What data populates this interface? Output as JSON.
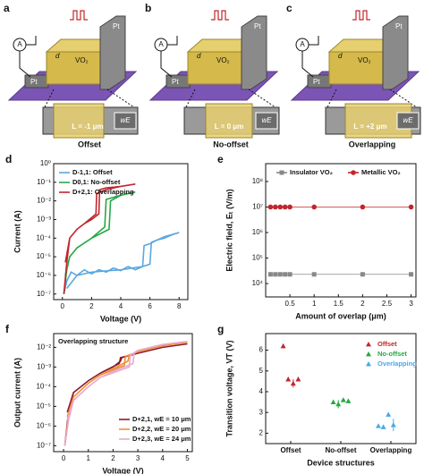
{
  "diagrams": [
    {
      "letter": "a",
      "pt_left": "Pt",
      "pt_right": "Pt",
      "material": "VO₂",
      "gap": "d",
      "meter": "A",
      "length": "L = -1 μm",
      "width": "wE",
      "caption": "Offset"
    },
    {
      "letter": "b",
      "pt_left": "Pt",
      "pt_right": "Pt",
      "material": "VO₂",
      "gap": "d",
      "meter": "A",
      "length": "L = 0 μm",
      "width": "wE",
      "caption": "No-offset"
    },
    {
      "letter": "c",
      "pt_left": "Pt",
      "pt_right": "Pt",
      "material": "VO₂",
      "gap": "d",
      "meter": "A",
      "length": "L = +2 μm",
      "width": "wE",
      "caption": "Overlapping"
    }
  ],
  "chart_data": [
    {
      "letter": "d",
      "type": "line",
      "xlabel": "Voltage (V)",
      "ylabel": "Current (A)",
      "log_y": true,
      "legend": "upper left",
      "xlim": [
        -0.6,
        8.6
      ],
      "xticks": [
        0,
        2,
        4,
        6,
        8
      ],
      "ylim": [
        5e-08,
        1
      ],
      "yticks": [
        {
          "value": 1e-07,
          "label": "10⁻⁷"
        },
        {
          "value": 1e-06,
          "label": "10⁻⁶"
        },
        {
          "value": 1e-05,
          "label": "10⁻⁵"
        },
        {
          "value": 0.0001,
          "label": "10⁻⁴"
        },
        {
          "value": 0.001,
          "label": "10⁻³"
        },
        {
          "value": 0.01,
          "label": "10⁻²"
        },
        {
          "value": 0.1,
          "label": "10⁻¹"
        },
        {
          "value": 1,
          "label": "10⁰"
        }
      ],
      "series": [
        {
          "name": "D-1,1: Offset",
          "color": "#5aa7e0",
          "x": [
            0.1,
            0.3,
            0.6,
            1,
            1.5,
            2,
            2.5,
            3,
            3.5,
            4,
            4.5,
            5,
            5.5,
            6,
            6.1,
            6.5,
            7,
            7.5,
            8,
            7,
            6.5,
            6,
            5.6,
            5.5,
            4,
            2,
            1,
            0.3
          ],
          "values": [
            1e-07,
            5e-07,
            1.5e-06,
            1e-06,
            2e-06,
            1.2e-06,
            2e-06,
            1.5e-06,
            2.5e-06,
            1.8e-06,
            3e-06,
            2e-06,
            3e-06,
            4e-06,
            6e-05,
            8e-05,
            0.0001,
            0.00015,
            0.0002,
            0.00012,
            8e-05,
            5e-05,
            4e-05,
            3e-06,
            2e-06,
            1.5e-06,
            1e-06,
            2e-07
          ]
        },
        {
          "name": "D0,1: No-offset",
          "color": "#27a844",
          "x": [
            0.1,
            0.3,
            0.5,
            1,
            2,
            3,
            3.2,
            3.3,
            4,
            5,
            4,
            3,
            2.9,
            2,
            1,
            0.5,
            0.2
          ],
          "values": [
            1e-07,
            2e-06,
            1e-05,
            3e-05,
            0.0001,
            0.00025,
            0.0003,
            0.01,
            0.02,
            0.03,
            0.02,
            0.012,
            0.0004,
            0.0001,
            3e-05,
            1e-05,
            1e-06
          ]
        },
        {
          "name": "D+2,1: Overlapping",
          "color": "#c0272d",
          "x": [
            0.1,
            0.3,
            0.5,
            1,
            1.5,
            2,
            2.5,
            2.55,
            3,
            4,
            5,
            4,
            3,
            2.35,
            2.3,
            1.5,
            1,
            0.5,
            0.2
          ],
          "values": [
            1e-07,
            5e-06,
            0.0001,
            0.0003,
            0.0006,
            0.001,
            0.002,
            0.04,
            0.05,
            0.06,
            0.08,
            0.06,
            0.04,
            0.025,
            0.002,
            0.0006,
            0.0003,
            0.0001,
            5e-06
          ]
        }
      ]
    },
    {
      "letter": "e",
      "type": "line",
      "marker": true,
      "xlabel": "Amount of overlap (μm)",
      "ylabel": "Electric field, Eₜ (V/m)",
      "log_y": true,
      "legend": "upper center",
      "xlim": [
        0,
        3.1
      ],
      "xticks": [
        0.5,
        1.0,
        1.5,
        2.0,
        2.5,
        3.0
      ],
      "ylim": [
        3000,
        500000000.0
      ],
      "yticks": [
        {
          "value": 10000.0,
          "label": "10⁴"
        },
        {
          "value": 100000.0,
          "label": "10⁵"
        },
        {
          "value": 1000000.0,
          "label": "10⁶"
        },
        {
          "value": 10000000.0,
          "label": "10⁷"
        },
        {
          "value": 100000000.0,
          "label": "10⁸"
        }
      ],
      "series": [
        {
          "name": "Insulator VO₂",
          "color": "#888888",
          "shape": "square",
          "x": [
            0.1,
            0.2,
            0.3,
            0.4,
            0.5,
            1.0,
            2.0,
            3.0
          ],
          "values": [
            23000,
            23000,
            23000,
            23000,
            23000,
            23000,
            23000,
            23000
          ]
        },
        {
          "name": "Metallic VO₂",
          "color": "#c0272d",
          "shape": "circle",
          "x": [
            0.1,
            0.2,
            0.3,
            0.4,
            0.5,
            1.0,
            2.0,
            3.0
          ],
          "values": [
            10000000.0,
            10000000.0,
            10000000.0,
            10000000.0,
            10000000.0,
            10000000.0,
            10000000.0,
            10000000.0
          ]
        }
      ]
    },
    {
      "letter": "f",
      "type": "line",
      "xlabel": "Voltage (V)",
      "ylabel": "Output current (A)",
      "log_y": true,
      "legend": "lower right",
      "annotation": "Overlapping structure",
      "xlim": [
        -0.4,
        5.2
      ],
      "xticks": [
        0,
        1,
        2,
        3,
        4,
        5
      ],
      "ylim": [
        5e-08,
        0.05
      ],
      "yticks": [
        {
          "value": 1e-07,
          "label": "10⁻⁷"
        },
        {
          "value": 1e-06,
          "label": "10⁻⁶"
        },
        {
          "value": 1e-05,
          "label": "10⁻⁵"
        },
        {
          "value": 0.0001,
          "label": "10⁻⁴"
        },
        {
          "value": 0.001,
          "label": "10⁻³"
        },
        {
          "value": 0.01,
          "label": "10⁻²"
        }
      ],
      "series": [
        {
          "name": "D+2,1, wE = 10 μm",
          "color": "#8b1a2b",
          "x": [
            0.05,
            0.2,
            0.4,
            1,
            1.5,
            2,
            2.3,
            2.35,
            3,
            4,
            5,
            4,
            3,
            2.3,
            2.25,
            1.5,
            1,
            0.4,
            0.15
          ],
          "values": [
            1e-07,
            5e-06,
            5e-05,
            0.0002,
            0.0005,
            0.001,
            0.002,
            0.003,
            0.005,
            0.01,
            0.015,
            0.01,
            0.005,
            0.003,
            0.0015,
            0.0005,
            0.0002,
            5e-05,
            5e-06
          ]
        },
        {
          "name": "D+2,2, wE = 20 μm",
          "color": "#f0902f",
          "x": [
            0.05,
            0.2,
            0.4,
            1,
            1.5,
            2,
            2.6,
            2.65,
            3,
            4,
            5,
            4,
            3,
            2.5,
            2.45,
            1.5,
            1,
            0.4,
            0.15
          ],
          "values": [
            1e-07,
            3e-06,
            3e-05,
            0.00015,
            0.0004,
            0.0008,
            0.002,
            0.004,
            0.006,
            0.012,
            0.018,
            0.012,
            0.006,
            0.0035,
            0.0012,
            0.0004,
            0.00015,
            3e-05,
            3e-06
          ]
        },
        {
          "name": "D+2,3, wE = 24 μm",
          "color": "#e8a9cf",
          "x": [
            0.05,
            0.2,
            0.4,
            1,
            1.5,
            2,
            2.8,
            2.85,
            3,
            4,
            5,
            4,
            3,
            2.7,
            2.65,
            1.5,
            1,
            0.4,
            0.15
          ],
          "values": [
            1e-07,
            2e-06,
            2e-05,
            0.0001,
            0.0003,
            0.0006,
            0.0015,
            0.005,
            0.007,
            0.014,
            0.02,
            0.014,
            0.007,
            0.004,
            0.001,
            0.0003,
            0.0001,
            2e-05,
            2e-06
          ]
        }
      ]
    },
    {
      "letter": "g",
      "type": "scatter",
      "xlabel": "Device structures",
      "ylabel": "Transition voltage, VT (V)",
      "legend": "upper right",
      "xlim": [
        0.5,
        3.5
      ],
      "xticks": [
        {
          "value": 1,
          "label": "Offset"
        },
        {
          "value": 2,
          "label": "No-offset"
        },
        {
          "value": 3,
          "label": "Overlapping"
        }
      ],
      "ylim": [
        1.5,
        6.8
      ],
      "yticks": [
        2,
        3,
        4,
        5,
        6
      ],
      "series": [
        {
          "name": "Offset",
          "color": "#c0272d",
          "x": [
            0.85,
            0.95,
            1.05,
            1.15
          ],
          "values": [
            6.2,
            4.6,
            4.4,
            4.6
          ],
          "errors": [
            0.1,
            0.1,
            0.2,
            0.1
          ]
        },
        {
          "name": "No-offset",
          "color": "#27a844",
          "x": [
            1.85,
            1.95,
            2.05,
            2.15
          ],
          "values": [
            3.5,
            3.4,
            3.6,
            3.55
          ],
          "errors": [
            0.1,
            0.2,
            0.1,
            0.05
          ]
        },
        {
          "name": "Overlapping",
          "color": "#4aa8e8",
          "x": [
            2.75,
            2.85,
            2.95,
            3.05
          ],
          "values": [
            2.35,
            2.3,
            2.9,
            2.4
          ],
          "errors": [
            0.05,
            0.05,
            0.1,
            0.3
          ]
        }
      ]
    }
  ]
}
